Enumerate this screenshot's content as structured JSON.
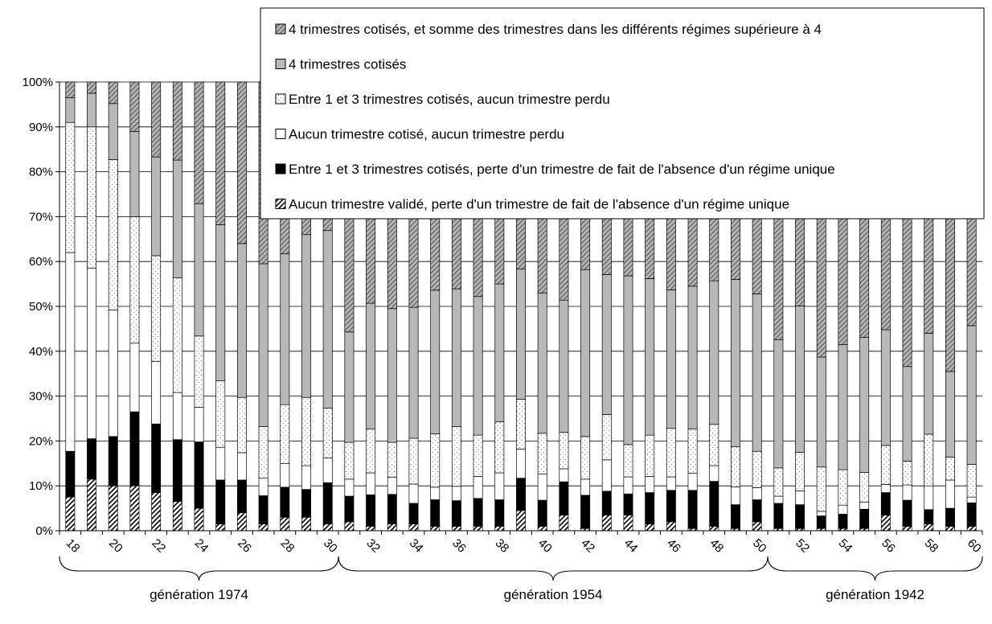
{
  "chart_data": {
    "type": "bar",
    "stacked": "percent",
    "categories": [
      "18",
      "19",
      "20",
      "21",
      "22",
      "23",
      "24",
      "25",
      "26",
      "27",
      "28",
      "29",
      "30",
      "31",
      "32",
      "33",
      "34",
      "35",
      "36",
      "37",
      "38",
      "39",
      "40",
      "41",
      "42",
      "43",
      "44",
      "45",
      "46",
      "47",
      "48",
      "49",
      "50",
      "51",
      "52",
      "53",
      "54",
      "55",
      "56",
      "57",
      "58",
      "59",
      "60"
    ],
    "x_tick_labels_shown": [
      "18",
      "20",
      "22",
      "24",
      "26",
      "28",
      "30",
      "32",
      "34",
      "36",
      "38",
      "40",
      "42",
      "44",
      "46",
      "48",
      "50",
      "52",
      "54",
      "56",
      "58",
      "60"
    ],
    "ylim": [
      0,
      100
    ],
    "y_ticks": [
      "0%",
      "10%",
      "20%",
      "30%",
      "40%",
      "50%",
      "60%",
      "70%",
      "80%",
      "90%",
      "100%"
    ],
    "series": [
      {
        "name": "Aucun trimestre validé, perte d'un trimestre de fait de l'absence d'un régime unique",
        "pattern": "hatch",
        "values": [
          7.5,
          11.5,
          10,
          10,
          8.5,
          6.5,
          5,
          1.5,
          4,
          1.5,
          3,
          3,
          1.5,
          2,
          1,
          1.5,
          1.5,
          1,
          1,
          1,
          1,
          4.5,
          1,
          3.5,
          0.5,
          3.5,
          3.5,
          1.5,
          2,
          0.5,
          1,
          0.5,
          2,
          0.5,
          0.5,
          0.5,
          0.5,
          0.5,
          3.5,
          1,
          1.5,
          1,
          1
        ]
      },
      {
        "name": "Entre 1 et 3 trimestres cotisés,  perte d'un trimestre de fait de l'absence d'un régime unique",
        "pattern": "black",
        "values": [
          10.2,
          9,
          11,
          16.5,
          15.3,
          13.8,
          14.8,
          9.8,
          7.3,
          6.3,
          6.7,
          6.2,
          9.2,
          5.7,
          7,
          6.6,
          4.6,
          5.9,
          5.7,
          6.2,
          5.9,
          7.2,
          5.8,
          7.4,
          7.4,
          5.3,
          4.7,
          7,
          7,
          8.5,
          10,
          5.3,
          4.9,
          5.6,
          5.3,
          2.8,
          3.2,
          4.3,
          5,
          5.8,
          3.2,
          4,
          5.2
        ]
      },
      {
        "name": "Aucun trimestre cotisé, aucun trimestre perdu",
        "pattern": "white",
        "values": [
          44.3,
          38,
          28.2,
          15.3,
          13.9,
          10.5,
          7.7,
          7.3,
          6.1,
          3.9,
          5.3,
          5.3,
          5.5,
          3.8,
          4.9,
          3.8,
          4.3,
          2.8,
          3.2,
          4.9,
          6,
          6.5,
          5.8,
          2.9,
          3.6,
          7,
          3.8,
          3.6,
          3,
          3.8,
          3.5,
          4,
          2.7,
          1.6,
          3.1,
          1,
          2,
          1.6,
          1.8,
          3.4,
          5.3,
          6.3,
          1.3
        ]
      },
      {
        "name": "Entre 1 et 3 trimestres cotisés, aucun trimestre perdu",
        "pattern": "dotted",
        "values": [
          29,
          31.5,
          33.5,
          28.2,
          23.6,
          25.6,
          15.9,
          14.8,
          12.3,
          11.5,
          13.1,
          15.2,
          11.1,
          8.2,
          9.8,
          7.8,
          10.2,
          11.9,
          13.3,
          9.2,
          11.4,
          11.1,
          9.1,
          8.1,
          9.5,
          10.1,
          7.2,
          9.2,
          10.8,
          9.9,
          9.2,
          8.9,
          8.1,
          6.3,
          8.6,
          9.9,
          7.9,
          6.6,
          8.7,
          5.3,
          11.5,
          5.1,
          7.3
        ]
      },
      {
        "name": "4 trimestres cotisés",
        "pattern": "gray",
        "values": [
          5.5,
          7.5,
          12.5,
          19,
          22,
          26.2,
          29.5,
          34.8,
          34.3,
          36.3,
          33.6,
          36.3,
          39.6,
          24.6,
          28,
          29.8,
          29.2,
          32,
          30.7,
          30.9,
          30.7,
          29,
          31.3,
          29.5,
          37.2,
          31.2,
          37.6,
          34.9,
          30.9,
          31.8,
          32,
          37.3,
          35.1,
          28.6,
          32.6,
          24.5,
          27.9,
          30.1,
          25.8,
          21.1,
          22.5,
          19.1,
          30.9
        ]
      },
      {
        "name": "4 trimestres cotisés, et somme des trimestres dans les différents régimes supérieure à 4",
        "pattern": "hatch-gray",
        "values": [
          3.5,
          2.5,
          4.8,
          11,
          16.7,
          17.4,
          27.1,
          31.8,
          36,
          40.5,
          38.3,
          34,
          32.6,
          55.7,
          49.3,
          50.5,
          50.2,
          46.9,
          46.1,
          47.8,
          45,
          41.7,
          47,
          48.6,
          41.8,
          42.9,
          43.2,
          43.8,
          46.3,
          45.5,
          44.3,
          44,
          47.2,
          57.4,
          49.9,
          61.8,
          58.5,
          57,
          55.2,
          63.4,
          56,
          64.5,
          54.3
        ]
      }
    ],
    "legend_placement": "top-right, inside plot, entries listed top to bottom in reverse stack order",
    "generation_groups": [
      {
        "label": "génération 1974",
        "from": "18",
        "to": "30"
      },
      {
        "label": "génération 1954",
        "from": "31",
        "to": "50"
      },
      {
        "label": "génération 1942",
        "from": "51",
        "to": "60"
      }
    ],
    "grid": true
  }
}
